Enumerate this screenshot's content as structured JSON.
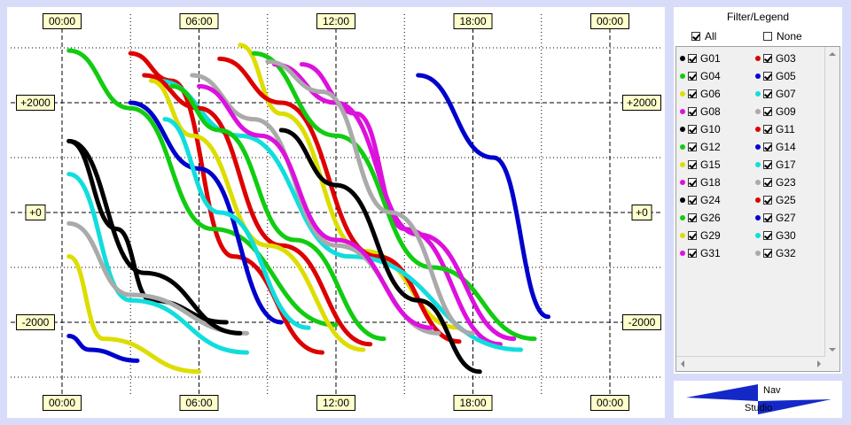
{
  "chart_data": {
    "type": "scatter",
    "x_ticks": [
      "00:00",
      "06:00",
      "12:00",
      "18:00",
      "00:00"
    ],
    "y_ticks": [
      "+2000",
      "+0",
      "-2000"
    ],
    "grid": true,
    "legend_placement": "right",
    "series": [
      {
        "name": "G01",
        "color": "#000000",
        "points": [
          [
            0.1,
            1300
          ],
          [
            0.8,
            -300
          ],
          [
            1.3,
            -1600
          ],
          [
            2.4,
            -2000
          ]
        ]
      },
      {
        "name": "G03",
        "color": "#dd0000",
        "points": [
          [
            1.0,
            2900
          ],
          [
            1.6,
            2400
          ],
          [
            2.5,
            -800
          ],
          [
            3.8,
            -2550
          ]
        ]
      },
      {
        "name": "G04",
        "color": "#11cc11",
        "points": [
          [
            0.1,
            2950
          ],
          [
            1.0,
            1900
          ],
          [
            2.2,
            -300
          ],
          [
            4.0,
            -2050
          ]
        ]
      },
      {
        "name": "G05",
        "color": "#0000cc",
        "points": [
          [
            5.2,
            2500
          ],
          [
            6.3,
            1000
          ],
          [
            7.1,
            -1900
          ]
        ]
      },
      {
        "name": "G06",
        "color": "#dddd00",
        "points": [
          [
            2.6,
            3050
          ],
          [
            3.2,
            1800
          ],
          [
            4.4,
            -700
          ],
          [
            5.8,
            -2100
          ]
        ]
      },
      {
        "name": "G07",
        "color": "#11dddd",
        "points": [
          [
            0.1,
            700
          ],
          [
            1.0,
            -1600
          ],
          [
            2.7,
            -2550
          ]
        ]
      },
      {
        "name": "G08",
        "color": "#dd11dd",
        "points": [
          [
            3.5,
            2700
          ],
          [
            4.3,
            1800
          ],
          [
            5.0,
            -300
          ],
          [
            6.4,
            -2400
          ]
        ]
      },
      {
        "name": "G09",
        "color": "#aaaaaa",
        "points": [
          [
            0.1,
            -200
          ],
          [
            1.0,
            -1500
          ],
          [
            2.7,
            -2200
          ]
        ]
      },
      {
        "name": "G10",
        "color": "#000000",
        "points": [
          [
            0.1,
            1300
          ],
          [
            1.2,
            -1100
          ],
          [
            2.6,
            -2200
          ]
        ]
      },
      {
        "name": "G11",
        "color": "#dd0000",
        "points": [
          [
            2.3,
            2800
          ],
          [
            3.2,
            2000
          ],
          [
            4.6,
            -800
          ],
          [
            5.8,
            -2350
          ]
        ]
      },
      {
        "name": "G12",
        "color": "#11cc11",
        "points": [
          [
            2.8,
            2900
          ],
          [
            4.0,
            1400
          ],
          [
            5.4,
            -1000
          ],
          [
            6.9,
            -2300
          ]
        ]
      },
      {
        "name": "G14",
        "color": "#0000cc",
        "points": [
          [
            0.1,
            -2250
          ],
          [
            0.4,
            -2500
          ],
          [
            1.1,
            -2700
          ]
        ]
      },
      {
        "name": "G15",
        "color": "#dddd00",
        "points": [
          [
            0.1,
            -800
          ],
          [
            0.6,
            -2300
          ],
          [
            2.0,
            -2900
          ]
        ]
      },
      {
        "name": "G17",
        "color": "#11dddd",
        "points": [
          [
            1.4,
            2400
          ],
          [
            2.6,
            1400
          ],
          [
            4.2,
            -800
          ],
          [
            6.7,
            -2500
          ]
        ]
      },
      {
        "name": "G18",
        "color": "#dd11dd",
        "points": [
          [
            3.1,
            2700
          ],
          [
            4.0,
            2000
          ],
          [
            5.2,
            -400
          ],
          [
            6.6,
            -2300
          ]
        ]
      },
      {
        "name": "G23",
        "color": "#aaaaaa",
        "points": [
          [
            1.9,
            2500
          ],
          [
            2.8,
            1700
          ],
          [
            4.0,
            -600
          ],
          [
            5.5,
            -2200
          ]
        ]
      },
      {
        "name": "G24",
        "color": "#000000",
        "points": [
          [
            3.2,
            1500
          ],
          [
            4.0,
            500
          ],
          [
            5.2,
            -1600
          ],
          [
            6.1,
            -2900
          ]
        ]
      },
      {
        "name": "G25",
        "color": "#dd0000",
        "points": [
          [
            1.2,
            2500
          ],
          [
            2.0,
            1900
          ],
          [
            3.2,
            -600
          ],
          [
            4.5,
            -2400
          ]
        ]
      },
      {
        "name": "G26",
        "color": "#11cc11",
        "points": [
          [
            1.6,
            2300
          ],
          [
            2.3,
            1500
          ],
          [
            3.4,
            -500
          ],
          [
            4.7,
            -2300
          ]
        ]
      },
      {
        "name": "G27",
        "color": "#0000cc",
        "points": [
          [
            1.0,
            2000
          ],
          [
            2.0,
            800
          ],
          [
            3.2,
            -2000
          ]
        ]
      },
      {
        "name": "G29",
        "color": "#dddd00",
        "points": [
          [
            1.3,
            2400
          ],
          [
            1.9,
            1400
          ],
          [
            3.0,
            -600
          ],
          [
            4.4,
            -2500
          ]
        ]
      },
      {
        "name": "G30",
        "color": "#11dddd",
        "points": [
          [
            1.5,
            1700
          ],
          [
            2.3,
            0
          ],
          [
            3.6,
            -2100
          ]
        ]
      },
      {
        "name": "G31",
        "color": "#dd11dd",
        "points": [
          [
            2.0,
            2300
          ],
          [
            2.9,
            1400
          ],
          [
            4.0,
            -500
          ],
          [
            5.4,
            -2100
          ]
        ]
      },
      {
        "name": "G32",
        "color": "#aaaaaa",
        "points": [
          [
            3.0,
            2750
          ],
          [
            3.8,
            2200
          ],
          [
            4.8,
            0
          ],
          [
            6.0,
            -2200
          ]
        ]
      }
    ]
  },
  "legend": {
    "title": "Filter/Legend",
    "all_label": "All",
    "none_label": "None",
    "all_checked": true,
    "none_checked": false,
    "items": [
      {
        "label": "G01",
        "color": "#000000"
      },
      {
        "label": "G03",
        "color": "#dd0000"
      },
      {
        "label": "G04",
        "color": "#11cc11"
      },
      {
        "label": "G05",
        "color": "#0000cc"
      },
      {
        "label": "G06",
        "color": "#dddd00"
      },
      {
        "label": "G07",
        "color": "#11dddd"
      },
      {
        "label": "G08",
        "color": "#dd11dd"
      },
      {
        "label": "G09",
        "color": "#aaaaaa"
      },
      {
        "label": "G10",
        "color": "#000000"
      },
      {
        "label": "G11",
        "color": "#dd0000"
      },
      {
        "label": "G12",
        "color": "#11cc11"
      },
      {
        "label": "G14",
        "color": "#0000cc"
      },
      {
        "label": "G15",
        "color": "#dddd00"
      },
      {
        "label": "G17",
        "color": "#11dddd"
      },
      {
        "label": "G18",
        "color": "#dd11dd"
      },
      {
        "label": "G23",
        "color": "#aaaaaa"
      },
      {
        "label": "G24",
        "color": "#000000"
      },
      {
        "label": "G25",
        "color": "#dd0000"
      },
      {
        "label": "G26",
        "color": "#11cc11"
      },
      {
        "label": "G27",
        "color": "#0000cc"
      },
      {
        "label": "G29",
        "color": "#dddd00"
      },
      {
        "label": "G30",
        "color": "#11dddd"
      },
      {
        "label": "G31",
        "color": "#dd11dd"
      },
      {
        "label": "G32",
        "color": "#aaaaaa"
      }
    ]
  },
  "logo": {
    "text_top": "Nav",
    "text_bottom": "Studio"
  }
}
